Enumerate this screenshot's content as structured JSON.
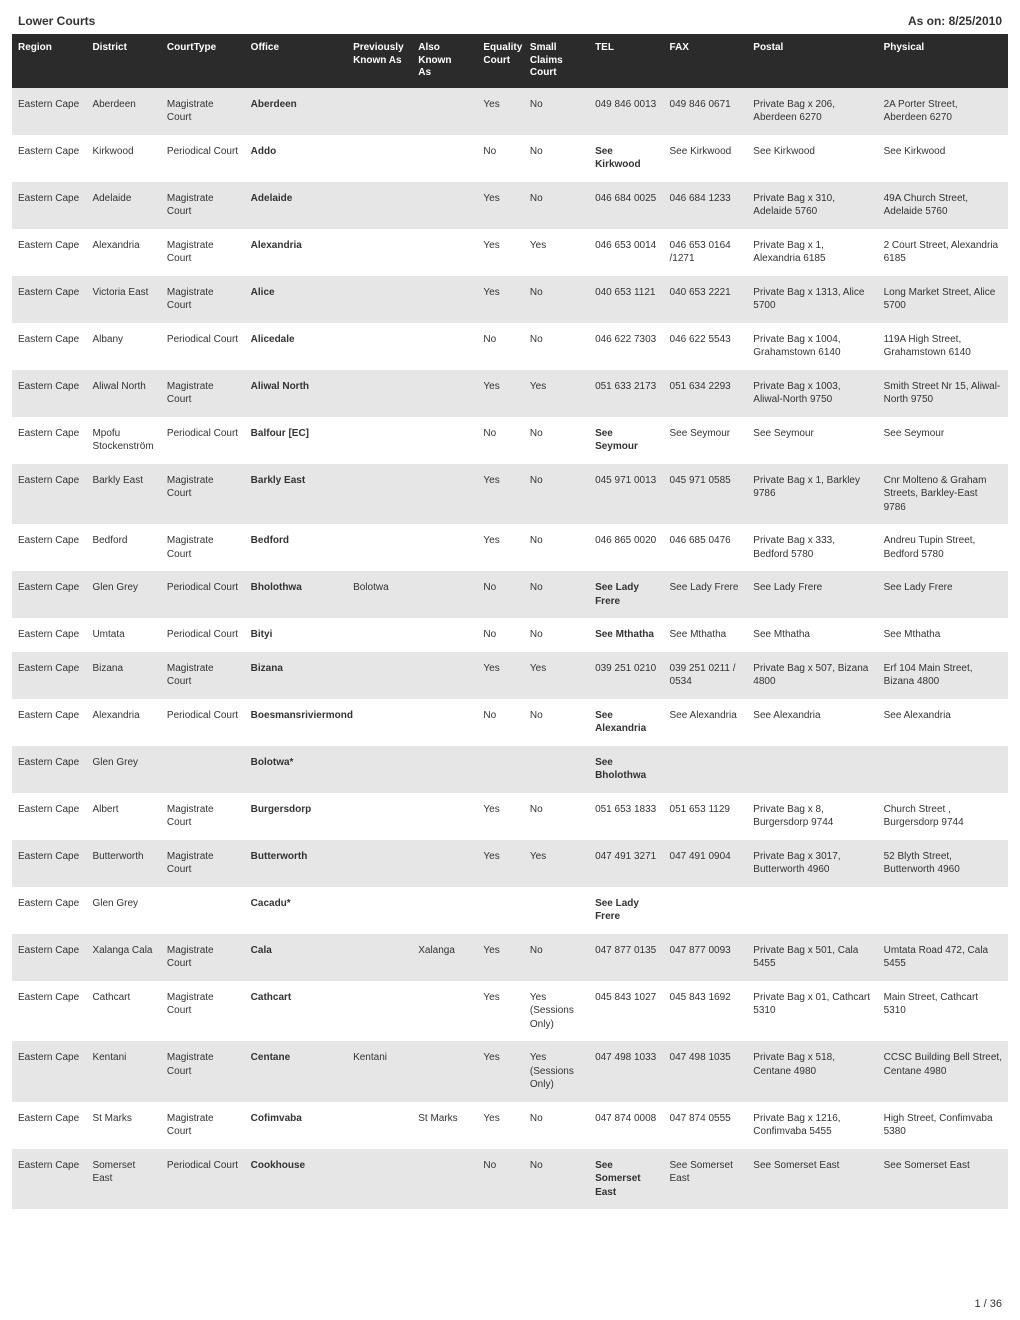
{
  "header": {
    "left": "Lower Courts",
    "right": "As on: 8/25/2010"
  },
  "footer": {
    "page": "1 / 36"
  },
  "colors": {
    "header_bg": "#2b2b2b",
    "header_fg": "#ffffff",
    "row_odd": "#e6e6e6",
    "row_even": "#ffffff"
  },
  "table": {
    "columns": [
      {
        "key": "region",
        "label_line1": "Region",
        "label_line2": ""
      },
      {
        "key": "district",
        "label_line1": "District",
        "label_line2": ""
      },
      {
        "key": "ctype",
        "label_line1": "CourtType",
        "label_line2": ""
      },
      {
        "key": "office",
        "label_line1": "Office",
        "label_line2": ""
      },
      {
        "key": "prev",
        "label_line1": "Previously",
        "label_line2": "Known As"
      },
      {
        "key": "aka",
        "label_line1": "Also Known",
        "label_line2": "As"
      },
      {
        "key": "eq",
        "label_line1": "Equality",
        "label_line2": "Court"
      },
      {
        "key": "sc",
        "label_line1": "Small Claims",
        "label_line2": "Court"
      },
      {
        "key": "tel",
        "label_line1": "TEL",
        "label_line2": ""
      },
      {
        "key": "fax",
        "label_line1": "FAX",
        "label_line2": ""
      },
      {
        "key": "postal",
        "label_line1": "Postal",
        "label_line2": ""
      },
      {
        "key": "physical",
        "label_line1": "Physical",
        "label_line2": ""
      }
    ],
    "rows": [
      {
        "region": "Eastern Cape",
        "district": "Aberdeen",
        "ctype": "Magistrate Court",
        "office": "Aberdeen",
        "prev": "",
        "aka": "",
        "eq": "Yes",
        "sc": "No",
        "tel": "049 846 0013",
        "fax": "049 846 0671",
        "postal": "Private Bag x 206, Aberdeen 6270",
        "physical": "2A Porter Street, Aberdeen 6270"
      },
      {
        "region": "Eastern Cape",
        "district": "Kirkwood",
        "ctype": "Periodical Court",
        "office": "Addo",
        "prev": "",
        "aka": "",
        "eq": "No",
        "sc": "No",
        "tel": "See Kirkwood",
        "fax": "See Kirkwood",
        "postal": "See Kirkwood",
        "physical": "See Kirkwood"
      },
      {
        "region": "Eastern Cape",
        "district": "Adelaide",
        "ctype": "Magistrate Court",
        "office": "Adelaide",
        "prev": "",
        "aka": "",
        "eq": "Yes",
        "sc": "No",
        "tel": "046 684 0025",
        "fax": "046 684 1233",
        "postal": "Private Bag x 310, Adelaide 5760",
        "physical": "49A Church Street, Adelaide 5760"
      },
      {
        "region": "Eastern Cape",
        "district": "Alexandria",
        "ctype": "Magistrate Court",
        "office": "Alexandria",
        "prev": "",
        "aka": "",
        "eq": "Yes",
        "sc": "Yes",
        "tel": "046 653 0014",
        "fax": "046 653 0164 /1271",
        "postal": "Private Bag x 1, Alexandria 6185",
        "physical": "2 Court Street, Alexandria 6185"
      },
      {
        "region": "Eastern Cape",
        "district": "Victoria East",
        "ctype": "Magistrate Court",
        "office": "Alice",
        "prev": "",
        "aka": "",
        "eq": "Yes",
        "sc": "No",
        "tel": "040 653 1121",
        "fax": "040 653 2221",
        "postal": "Private Bag x 1313, Alice 5700",
        "physical": "Long Market Street, Alice 5700"
      },
      {
        "region": "Eastern Cape",
        "district": "Albany",
        "ctype": "Periodical Court",
        "office": "Alicedale",
        "prev": "",
        "aka": "",
        "eq": "No",
        "sc": "No",
        "tel": "046 622 7303",
        "fax": "046 622 5543",
        "postal": "Private Bag x 1004, Grahamstown 6140",
        "physical": "119A High Street, Grahamstown 6140"
      },
      {
        "region": "Eastern Cape",
        "district": "Aliwal North",
        "ctype": "Magistrate Court",
        "office": "Aliwal North",
        "prev": "",
        "aka": "",
        "eq": "Yes",
        "sc": "Yes",
        "tel": "051 633 2173",
        "fax": "051 634 2293",
        "postal": "Private Bag x 1003, Aliwal-North 9750",
        "physical": "Smith Street Nr 15, Aliwal-North 9750"
      },
      {
        "region": "Eastern Cape",
        "district": "Mpofu Stockenström",
        "ctype": "Periodical Court",
        "office": "Balfour [EC]",
        "prev": "",
        "aka": "",
        "eq": "No",
        "sc": "No",
        "tel": "See Seymour",
        "fax": "See Seymour",
        "postal": "See Seymour",
        "physical": "See Seymour"
      },
      {
        "region": "Eastern Cape",
        "district": "Barkly East",
        "ctype": "Magistrate Court",
        "office": "Barkly East",
        "prev": "",
        "aka": "",
        "eq": "Yes",
        "sc": "No",
        "tel": "045 971 0013",
        "fax": "045 971 0585",
        "postal": "Private Bag x 1, Barkley 9786",
        "physical": "Cnr Molteno & Graham Streets, Barkley-East 9786"
      },
      {
        "region": "Eastern Cape",
        "district": "Bedford",
        "ctype": "Magistrate Court",
        "office": "Bedford",
        "prev": "",
        "aka": "",
        "eq": "Yes",
        "sc": "No",
        "tel": "046 865 0020",
        "fax": "046 685 0476",
        "postal": "Private Bag x 333, Bedford 5780",
        "physical": "Andreu Tupin Street, Bedford 5780"
      },
      {
        "region": "Eastern Cape",
        "district": "Glen Grey",
        "ctype": "Periodical Court",
        "office": "Bholothwa",
        "prev": "Bolotwa",
        "aka": "",
        "eq": "No",
        "sc": "No",
        "tel": "See Lady Frere",
        "fax": "See Lady Frere",
        "postal": "See Lady Frere",
        "physical": "See Lady Frere"
      },
      {
        "region": "Eastern Cape",
        "district": "Umtata",
        "ctype": "Periodical Court",
        "office": "Bityi",
        "prev": "",
        "aka": "",
        "eq": "No",
        "sc": "No",
        "tel": "See Mthatha",
        "fax": "See Mthatha",
        "postal": "See Mthatha",
        "physical": "See Mthatha"
      },
      {
        "region": "Eastern Cape",
        "district": "Bizana",
        "ctype": "Magistrate Court",
        "office": "Bizana",
        "prev": "",
        "aka": "",
        "eq": "Yes",
        "sc": "Yes",
        "tel": "039 251 0210",
        "fax": "039 251 0211 / 0534",
        "postal": "Private Bag x 507, Bizana 4800",
        "physical": "Erf 104 Main Street, Bizana 4800"
      },
      {
        "region": "Eastern Cape",
        "district": "Alexandria",
        "ctype": "Periodical Court",
        "office": "Boesmansriviermond",
        "prev": "",
        "aka": "",
        "eq": "No",
        "sc": "No",
        "tel": "See Alexandria",
        "fax": "See Alexandria",
        "postal": "See Alexandria",
        "physical": "See Alexandria"
      },
      {
        "region": "Eastern Cape",
        "district": "Glen Grey",
        "ctype": "",
        "office": "Bolotwa*",
        "prev": "",
        "aka": "",
        "eq": "",
        "sc": "",
        "tel": "See Bholothwa",
        "fax": "",
        "postal": "",
        "physical": ""
      },
      {
        "region": "Eastern Cape",
        "district": "Albert",
        "ctype": "Magistrate Court",
        "office": "Burgersdorp",
        "prev": "",
        "aka": "",
        "eq": "Yes",
        "sc": "No",
        "tel": "051 653 1833",
        "fax": "051 653 1129",
        "postal": "Private Bag x 8, Burgersdorp 9744",
        "physical": "Church Street , Burgersdorp 9744"
      },
      {
        "region": "Eastern Cape",
        "district": "Butterworth",
        "ctype": "Magistrate Court",
        "office": "Butterworth",
        "prev": "",
        "aka": "",
        "eq": "Yes",
        "sc": "Yes",
        "tel": "047 491 3271",
        "fax": "047 491 0904",
        "postal": "Private Bag x 3017, Butterworth 4960",
        "physical": "52 Blyth Street, Butterworth 4960"
      },
      {
        "region": "Eastern Cape",
        "district": "Glen Grey",
        "ctype": "",
        "office": "Cacadu*",
        "prev": "",
        "aka": "",
        "eq": "",
        "sc": "",
        "tel": "See Lady Frere",
        "fax": "",
        "postal": "",
        "physical": ""
      },
      {
        "region": "Eastern Cape",
        "district": "Xalanga Cala",
        "ctype": "Magistrate Court",
        "office": "Cala",
        "prev": "",
        "aka": "Xalanga",
        "eq": "Yes",
        "sc": "No",
        "tel": "047 877 0135",
        "fax": "047 877 0093",
        "postal": "Private Bag x 501, Cala 5455",
        "physical": "Umtata Road 472, Cala 5455"
      },
      {
        "region": "Eastern Cape",
        "district": "Cathcart",
        "ctype": "Magistrate Court",
        "office": "Cathcart",
        "prev": "",
        "aka": "",
        "eq": "Yes",
        "sc": "Yes (Sessions Only)",
        "tel": "045 843 1027",
        "fax": "045 843 1692",
        "postal": "Private Bag x 01, Cathcart 5310",
        "physical": "Main Street, Cathcart 5310"
      },
      {
        "region": "Eastern Cape",
        "district": "Kentani",
        "ctype": "Magistrate Court",
        "office": "Centane",
        "prev": "Kentani",
        "aka": "",
        "eq": "Yes",
        "sc": "Yes (Sessions Only)",
        "tel": "047 498 1033",
        "fax": "047 498 1035",
        "postal": "Private Bag x 518, Centane 4980",
        "physical": "CCSC Building Bell Street, Centane 4980"
      },
      {
        "region": "Eastern Cape",
        "district": "St Marks",
        "ctype": "Magistrate Court",
        "office": "Cofimvaba",
        "prev": "",
        "aka": "St Marks",
        "eq": "Yes",
        "sc": "No",
        "tel": "047 874 0008",
        "fax": "047 874 0555",
        "postal": "Private Bag x 1216, Confimvaba 5455",
        "physical": "High Street, Confimvaba 5380"
      },
      {
        "region": "Eastern Cape",
        "district": "Somerset East",
        "ctype": "Periodical Court",
        "office": "Cookhouse",
        "prev": "",
        "aka": "",
        "eq": "No",
        "sc": "No",
        "tel": "See Somerset East",
        "fax": "See Somerset East",
        "postal": "See Somerset East",
        "physical": "See Somerset East"
      }
    ]
  }
}
